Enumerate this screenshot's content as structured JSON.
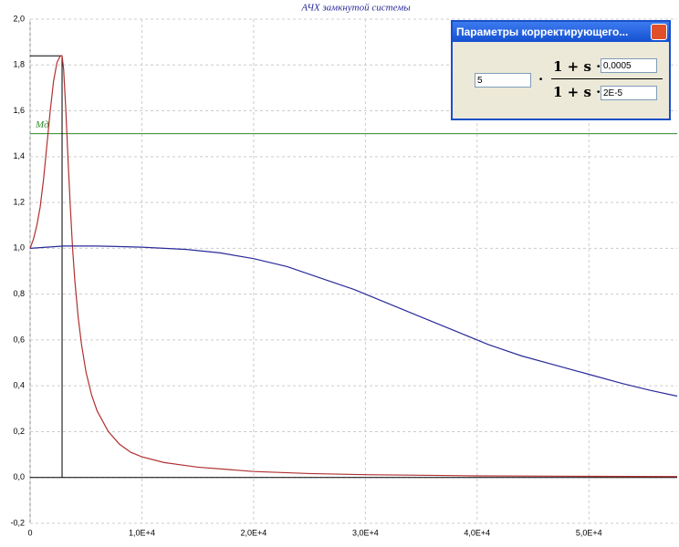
{
  "chart_data": {
    "type": "line",
    "title": "АЧХ замкнутой системы",
    "xlim": [
      0,
      57900
    ],
    "ylim": [
      -0.2,
      2.0
    ],
    "xticks": [
      0,
      {
        "value": 10000,
        "label": "1,0E+4"
      },
      {
        "value": 20000,
        "label": "2,0E+4"
      },
      {
        "value": 30000,
        "label": "3,0E+4"
      },
      {
        "value": 40000,
        "label": "4,0E+4"
      },
      {
        "value": 50000,
        "label": "5,0E+4"
      }
    ],
    "yticks": [
      {
        "value": -0.2,
        "label": "-0,2"
      },
      {
        "value": 0,
        "label": "0,0"
      },
      {
        "value": 0.2,
        "label": "0,2"
      },
      {
        "value": 0.4,
        "label": "0,4"
      },
      {
        "value": 0.6,
        "label": "0,6"
      },
      {
        "value": 0.8,
        "label": "0,8"
      },
      {
        "value": 1.0,
        "label": "1,0"
      },
      {
        "value": 1.2,
        "label": "1,2"
      },
      {
        "value": 1.4,
        "label": "1,4"
      },
      {
        "value": 1.6,
        "label": "1,6"
      },
      {
        "value": 1.8,
        "label": "1,8"
      },
      {
        "value": 2.0,
        "label": "2,0"
      }
    ],
    "grid": true,
    "series": [
      {
        "color": "#b03030",
        "x": [
          0,
          300,
          600,
          900,
          1200,
          1500,
          1800,
          2100,
          2400,
          2700,
          2860,
          3000,
          3200,
          3400,
          3600,
          3800,
          4000,
          4300,
          4600,
          5000,
          5500,
          6000,
          7000,
          8000,
          9000,
          10000,
          12000,
          15000,
          20000,
          25000,
          30000,
          40000,
          50000,
          57900
        ],
        "values": [
          1.0,
          1.04,
          1.1,
          1.18,
          1.3,
          1.45,
          1.6,
          1.73,
          1.81,
          1.84,
          1.84,
          1.78,
          1.6,
          1.38,
          1.18,
          1.0,
          0.86,
          0.7,
          0.58,
          0.46,
          0.36,
          0.29,
          0.2,
          0.145,
          0.11,
          0.09,
          0.065,
          0.045,
          0.026,
          0.017,
          0.012,
          0.007,
          0.005,
          0.004
        ]
      },
      {
        "color": "#2a2a9a",
        "x": [
          0,
          3000,
          6000,
          10000,
          14000,
          17000,
          20000,
          23000,
          26000,
          29000,
          32000,
          35000,
          38000,
          41000,
          44000,
          47000,
          50000,
          53000,
          55500,
          57900
        ],
        "values": [
          1.0,
          1.01,
          1.01,
          1.005,
          0.995,
          0.98,
          0.955,
          0.92,
          0.87,
          0.82,
          0.76,
          0.7,
          0.64,
          0.58,
          0.53,
          0.49,
          0.45,
          0.41,
          0.38,
          0.355
        ]
      }
    ],
    "peak": {
      "x": 2860,
      "y": 1.84,
      "color": "#000000"
    },
    "md": {
      "label": "Мд",
      "value": 1.5,
      "color": "#2e8b2e"
    }
  },
  "dialog": {
    "title": "Параметры корректирующего...",
    "gain": "5",
    "operator": "·",
    "numerator": {
      "text": "1 + s ·",
      "value": "0,0005"
    },
    "denominator": {
      "text": "1 + s ·",
      "value": "2E-5"
    }
  }
}
